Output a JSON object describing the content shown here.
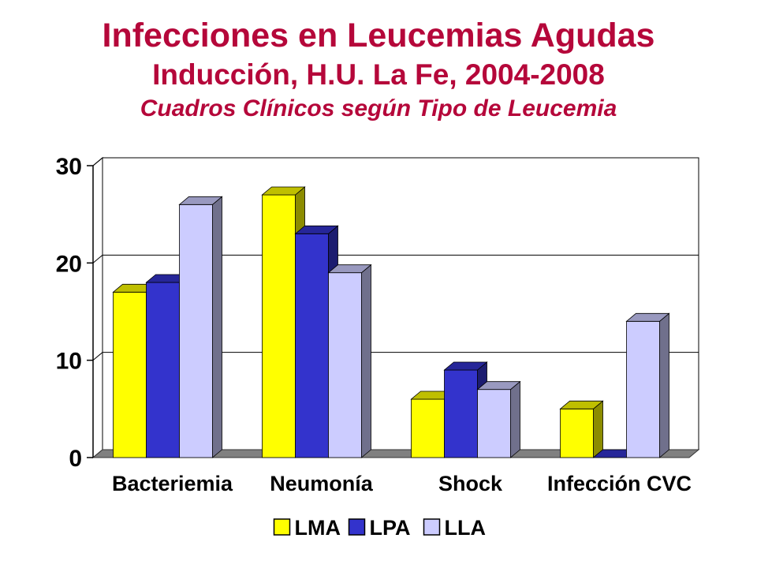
{
  "chart_data": {
    "type": "bar",
    "title": "Infecciones en Leucemias Agudas",
    "subtitle": "Inducción, H.U. La Fe, 2004-2008",
    "subtitle2": "Cuadros Clínicos según Tipo de Leucemia",
    "categories": [
      "Bacteriemia",
      "Neumonía",
      "Shock",
      "Infección CVC"
    ],
    "series": [
      {
        "name": "LMA",
        "values": [
          17,
          27,
          6,
          5
        ],
        "color": "#ffff00"
      },
      {
        "name": "LPA",
        "values": [
          18,
          23,
          9,
          0
        ],
        "color": "#3333cc"
      },
      {
        "name": "LLA",
        "values": [
          26,
          19,
          7,
          14
        ],
        "color": "#ccccff"
      }
    ],
    "yticks": [
      "0",
      "10",
      "20",
      "30"
    ],
    "ylim": [
      0,
      30
    ],
    "grid": true,
    "legend_position": "bottom",
    "three_d": true
  }
}
